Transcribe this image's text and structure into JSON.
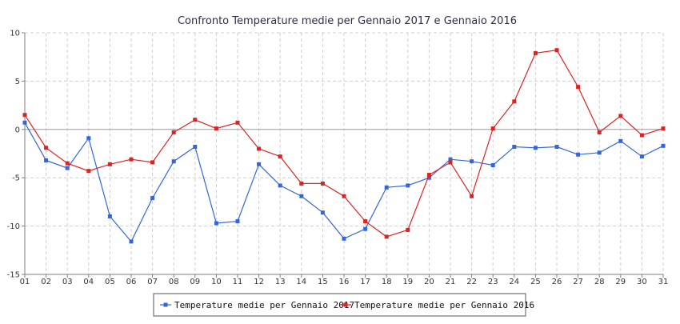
{
  "chart_data": {
    "type": "line",
    "title": "Confronto Temperature medie per Gennaio 2017 e Gennaio 2016",
    "xlabel": "",
    "ylabel": "",
    "categories": [
      "01",
      "02",
      "03",
      "04",
      "05",
      "06",
      "07",
      "08",
      "09",
      "10",
      "11",
      "12",
      "13",
      "14",
      "15",
      "16",
      "17",
      "18",
      "19",
      "20",
      "21",
      "22",
      "23",
      "24",
      "25",
      "26",
      "27",
      "28",
      "29",
      "30",
      "31"
    ],
    "ylim": [
      -15,
      10
    ],
    "yticks": [
      -15,
      -10,
      -5,
      0,
      5,
      10
    ],
    "grid": true,
    "legend_position": "bottom",
    "series": [
      {
        "name": "Temperature medie per Gennaio 2017",
        "color": "#3366dd",
        "values": [
          0.7,
          -3.2,
          -4.0,
          -0.9,
          -9.0,
          -11.6,
          -7.1,
          -3.3,
          -1.8,
          -9.7,
          -9.5,
          -3.6,
          -5.8,
          -6.9,
          -8.6,
          -11.3,
          -10.3,
          -6.0,
          -5.8,
          -5.0,
          -3.1,
          -3.3,
          -3.7,
          -1.8,
          -1.9,
          -1.8,
          -2.6,
          -2.4,
          -1.2,
          -2.8,
          -1.7
        ]
      },
      {
        "name": "Temperature medie per Gennaio 2016",
        "color": "#dd2222",
        "values": [
          1.5,
          -1.9,
          -3.5,
          -4.3,
          -3.6,
          -3.1,
          -3.4,
          -0.3,
          1.0,
          0.1,
          0.7,
          -2.0,
          -2.8,
          -5.6,
          -5.6,
          -6.9,
          -9.5,
          -11.1,
          -10.4,
          -4.7,
          -3.4,
          -6.9,
          0.1,
          2.9,
          7.9,
          8.2,
          4.4,
          -0.3,
          1.4,
          -0.6,
          0.1
        ]
      }
    ]
  }
}
